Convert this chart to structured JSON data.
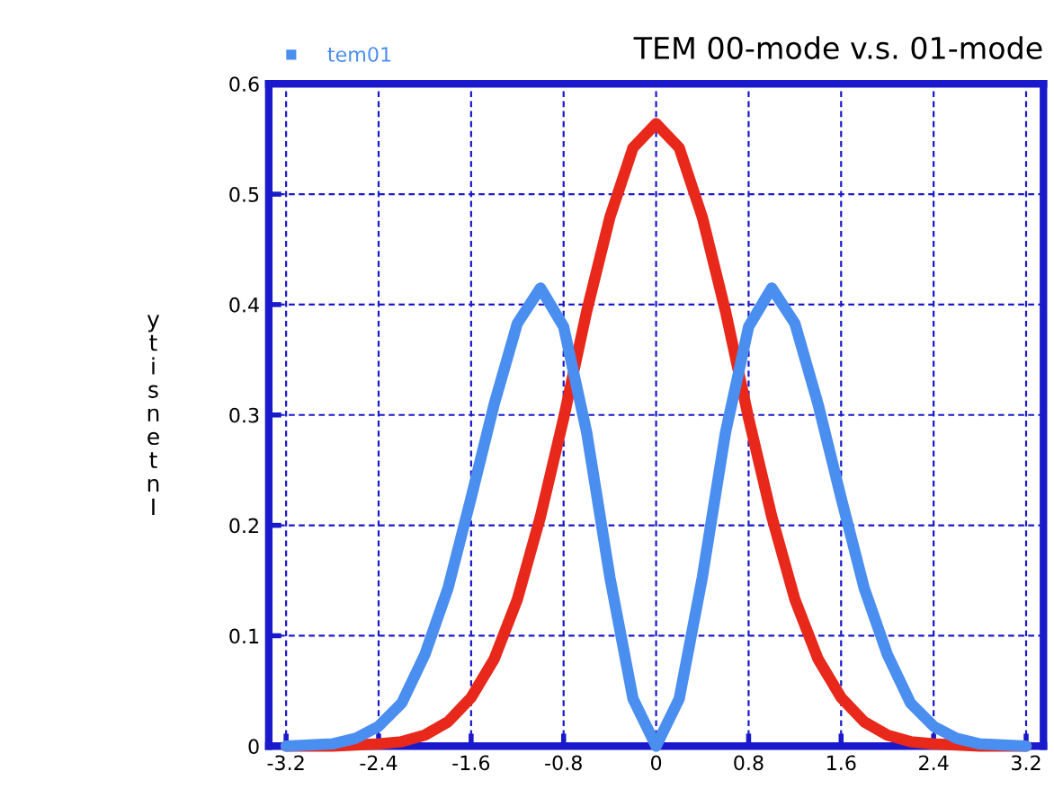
{
  "chart_data": {
    "type": "line",
    "title": "TEM 00-mode v.s. 01-mode",
    "ylabel": "ytisnetnI",
    "x": [
      -3.2,
      -3.0,
      -2.8,
      -2.6,
      -2.4,
      -2.2,
      -2.0,
      -1.8,
      -1.6,
      -1.4,
      -1.2,
      -1.0,
      -0.8,
      -0.6,
      -0.4,
      -0.2,
      0,
      0.2,
      0.4,
      0.6,
      0.8,
      1.0,
      1.2,
      1.4,
      1.6,
      1.8,
      2.0,
      2.2,
      2.4,
      2.6,
      2.8,
      3.0,
      3.2
    ],
    "series": [
      {
        "color": "#e8281a",
        "values": [
          0,
          0,
          0,
          0.001,
          0.002,
          0.004,
          0.01,
          0.022,
          0.044,
          0.079,
          0.133,
          0.208,
          0.297,
          0.394,
          0.479,
          0.542,
          0.564,
          0.542,
          0.479,
          0.394,
          0.297,
          0.208,
          0.133,
          0.079,
          0.044,
          0.022,
          0.01,
          0.004,
          0.002,
          0.001,
          0,
          0,
          0
        ]
      },
      {
        "name": "tem01",
        "color": "#4a8ef0",
        "values": [
          0,
          0.001,
          0.002,
          0.007,
          0.018,
          0.039,
          0.083,
          0.143,
          0.225,
          0.31,
          0.383,
          0.415,
          0.38,
          0.284,
          0.153,
          0.043,
          0,
          0.043,
          0.153,
          0.284,
          0.38,
          0.415,
          0.383,
          0.31,
          0.225,
          0.143,
          0.083,
          0.039,
          0.018,
          0.007,
          0.002,
          0.001,
          0
        ]
      }
    ],
    "xlim": [
      -3.35,
      3.35
    ],
    "ylim": [
      0,
      0.6
    ],
    "xticks": [
      -3.2,
      -2.4,
      -1.6,
      -0.8,
      0,
      0.8,
      1.6,
      2.4,
      3.2
    ],
    "yticks": [
      0,
      0.1,
      0.2,
      0.3,
      0.4,
      0.5,
      0.6
    ],
    "grid": true,
    "legend": "top left",
    "line_style": "solid",
    "marker": "none"
  }
}
